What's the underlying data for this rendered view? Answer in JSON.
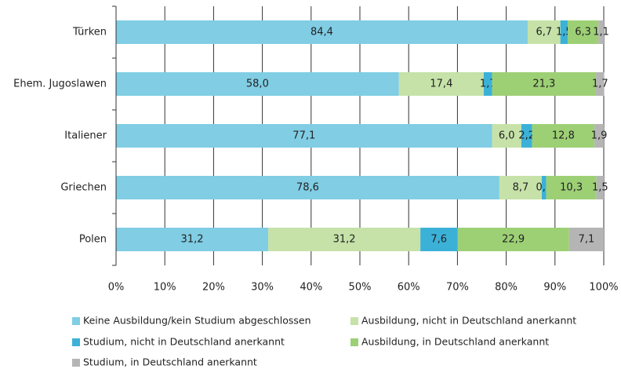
{
  "chart_data": {
    "type": "stacked_bar_horizontal",
    "categories": [
      "Türken",
      "Ehem. Jugoslawen",
      "Italiener",
      "Griechen",
      "Polen"
    ],
    "series": [
      {
        "name": "Keine Ausbildung/kein Studium abgeschlossen",
        "color": "#80cde4",
        "values": [
          84.4,
          58.0,
          77.1,
          78.6,
          31.2
        ],
        "value_labels": [
          "84,4",
          "58,0",
          "77,1",
          "78,6",
          "31,2"
        ]
      },
      {
        "name": "Ausbildung, nicht in Deutschland anerkannt",
        "color": "#c6e2a8",
        "values": [
          6.7,
          17.4,
          6.0,
          8.7,
          31.2
        ],
        "value_labels": [
          "6,7",
          "17,4",
          "6,0",
          "8,7",
          "31,2"
        ]
      },
      {
        "name": "Studium, nicht in Deutschland anerkannt",
        "color": "#3cb1d8",
        "values": [
          1.5,
          1.7,
          2.2,
          0.9,
          7.6
        ],
        "value_labels": [
          "1,5",
          "1,7",
          "2,2",
          "0,9",
          "7,6"
        ]
      },
      {
        "name": "Ausbildung, in Deutschland anerkannt",
        "color": "#9dd075",
        "values": [
          6.3,
          21.3,
          12.8,
          10.3,
          22.9
        ],
        "value_labels": [
          "6,3",
          "21,3",
          "12,8",
          "10,3",
          "22,9"
        ]
      },
      {
        "name": "Studium, in Deutschland anerkannt",
        "color": "#b5b5b5",
        "values": [
          1.1,
          1.7,
          1.9,
          1.5,
          7.1
        ],
        "value_labels": [
          "1,1",
          "1,7",
          "1,9",
          "1,5",
          "7,1"
        ]
      }
    ],
    "xlim": [
      0,
      100
    ],
    "xticks": [
      {
        "value": 0,
        "label": "0%"
      },
      {
        "value": 10,
        "label": "10%"
      },
      {
        "value": 20,
        "label": "20%"
      },
      {
        "value": 30,
        "label": "30%"
      },
      {
        "value": 40,
        "label": "40%"
      },
      {
        "value": 50,
        "label": "50%"
      },
      {
        "value": 60,
        "label": "60%"
      },
      {
        "value": 70,
        "label": "70%"
      },
      {
        "value": 80,
        "label": "80%"
      },
      {
        "value": 90,
        "label": "90%"
      },
      {
        "value": 100,
        "label": "100%"
      }
    ],
    "grid": true
  }
}
